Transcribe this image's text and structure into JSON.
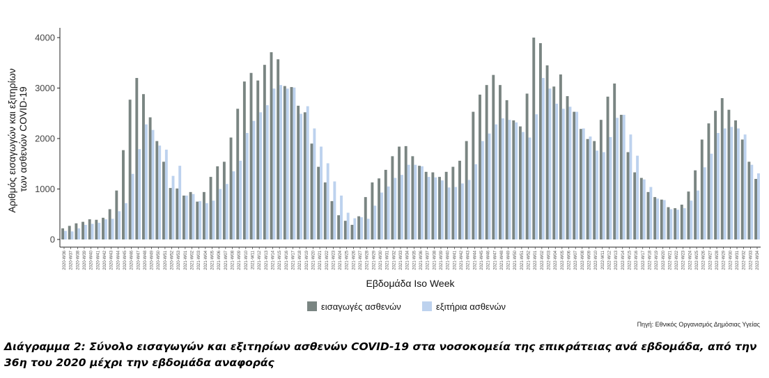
{
  "chart_data": {
    "type": "bar",
    "ylabel": "Αριθμός εισαγωγών και εξιτηρίων των ασθενών COVID-19",
    "xlabel": "Εβδομάδα Iso Week",
    "yticks": [
      0,
      1000,
      2000,
      3000,
      4000
    ],
    "ylim": [
      0,
      4200
    ],
    "legend_position": "bottom",
    "grid": false,
    "source": "Πηγή: Εθνικός Οργανισμός Δημόσιας Υγείας",
    "categories": [
      "2020-W36",
      "2020-W37",
      "2020-W38",
      "2020-W39",
      "2020-W40",
      "2020-W41",
      "2020-W42",
      "2020-W43",
      "2020-W44",
      "2020-W45",
      "2020-W46",
      "2020-W47",
      "2020-W48",
      "2020-W49",
      "2020-W50",
      "2020-W51",
      "2020-W52",
      "2020-W53",
      "2021-W01",
      "2021-W02",
      "2021-W03",
      "2021-W04",
      "2021-W05",
      "2021-W06",
      "2021-W07",
      "2021-W08",
      "2021-W09",
      "2021-W10",
      "2021-W11",
      "2021-W12",
      "2021-W13",
      "2021-W14",
      "2021-W15",
      "2021-W16",
      "2021-W17",
      "2021-W18",
      "2021-W19",
      "2021-W20",
      "2021-W21",
      "2021-W22",
      "2021-W23",
      "2021-W24",
      "2021-W25",
      "2021-W26",
      "2021-W27",
      "2021-W28",
      "2021-W29",
      "2021-W30",
      "2021-W31",
      "2021-W32",
      "2021-W33",
      "2021-W34",
      "2021-W35",
      "2021-W36",
      "2021-W37",
      "2021-W38",
      "2021-W39",
      "2021-W40",
      "2021-W41",
      "2021-W42",
      "2021-W43",
      "2021-W44",
      "2021-W45",
      "2021-W46",
      "2021-W47",
      "2021-W48",
      "2021-W49",
      "2021-W50",
      "2021-W51",
      "2021-W52",
      "2022-W01",
      "2022-W02",
      "2022-W03",
      "2022-W04",
      "2022-W05",
      "2022-W06",
      "2022-W07",
      "2022-W08",
      "2022-W09",
      "2022-W10",
      "2022-W11",
      "2022-W12",
      "2022-W13",
      "2022-W14",
      "2022-W15",
      "2022-W16",
      "2022-W17",
      "2022-W18",
      "2022-W19",
      "2022-W20",
      "2022-W21",
      "2022-W22",
      "2022-W23",
      "2022-W24",
      "2022-W25",
      "2022-W26",
      "2022-W27",
      "2022-W28",
      "2022-W29",
      "2022-W30",
      "2022-W31",
      "2022-W32",
      "2022-W33",
      "2022-W34"
    ],
    "series": [
      {
        "name": "εισαγωγές ασθενών",
        "color": "#7a8582",
        "values": [
          220,
          270,
          320,
          350,
          400,
          390,
          430,
          600,
          970,
          1770,
          2770,
          3200,
          2880,
          2420,
          1950,
          1540,
          1020,
          1010,
          870,
          940,
          750,
          940,
          1240,
          1450,
          1540,
          2020,
          2590,
          3130,
          3300,
          3150,
          3460,
          3710,
          3570,
          3040,
          3020,
          2650,
          2520,
          1900,
          1440,
          1130,
          760,
          480,
          370,
          290,
          460,
          840,
          1130,
          1210,
          1380,
          1650,
          1840,
          1850,
          1650,
          1460,
          1340,
          1330,
          1240,
          1340,
          1440,
          1560,
          1950,
          2530,
          2870,
          3060,
          3260,
          3060,
          2760,
          2360,
          2240,
          2890,
          4000,
          3890,
          3450,
          3030,
          3270,
          2840,
          2530,
          2190,
          1990,
          1950,
          2370,
          2830,
          3090,
          2470,
          1730,
          1330,
          1220,
          940,
          840,
          790,
          640,
          620,
          690,
          950,
          1370,
          1980,
          2300,
          2550,
          2800,
          2570,
          2360,
          1980,
          1540,
          1200
        ]
      },
      {
        "name": "εξιτήρια ασθενών",
        "color": "#bdd2ee",
        "values": [
          170,
          160,
          220,
          290,
          310,
          330,
          400,
          410,
          560,
          720,
          1300,
          1790,
          2280,
          2170,
          1860,
          1780,
          1260,
          1460,
          870,
          900,
          760,
          720,
          770,
          1000,
          1100,
          1350,
          1560,
          2110,
          2350,
          2520,
          2660,
          2990,
          3060,
          2990,
          3010,
          2490,
          2640,
          2200,
          1840,
          1510,
          1150,
          870,
          530,
          420,
          440,
          410,
          670,
          930,
          1050,
          1220,
          1280,
          1480,
          1480,
          1450,
          1240,
          1230,
          1170,
          1030,
          1040,
          1110,
          1180,
          1490,
          1950,
          2100,
          2280,
          2400,
          2370,
          2320,
          2130,
          2020,
          2480,
          3200,
          2990,
          2690,
          2590,
          2630,
          2530,
          2200,
          2040,
          1760,
          1730,
          2030,
          2410,
          2470,
          2080,
          1660,
          1190,
          1040,
          810,
          780,
          600,
          590,
          620,
          770,
          970,
          1430,
          1700,
          2110,
          2200,
          2230,
          2200,
          2080,
          1480,
          1310
        ]
      }
    ]
  },
  "caption": "Διάγραμμα 2: Σύνολο εισαγωγών και εξιτηρίων ασθενών COVID-19 στα νοσοκομεία της επικράτειας ανά εβδομάδα, από την 36η του 2020 μέχρι την εβδομάδα αναφοράς"
}
